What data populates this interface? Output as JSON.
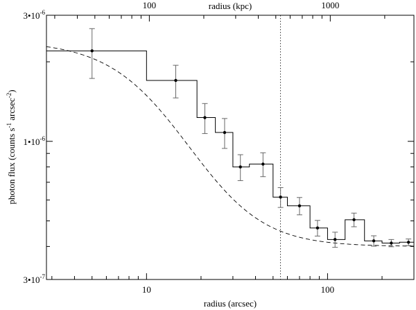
{
  "chart_data": {
    "type": "scatter",
    "title": "",
    "xlabel": "radius (arcsec)",
    "ylabel": "photon flux (counts s⁻¹ arcsec⁻²)",
    "x2label": "radius (kpc)",
    "xscale": "log",
    "yscale": "log",
    "xlim": [
      2.8,
      300
    ],
    "ylim": [
      3e-07,
      3e-06
    ],
    "x2lim": [
      27,
      2900
    ],
    "xticks": [
      {
        "value": 10,
        "label": "10"
      },
      {
        "value": 100,
        "label": "100"
      }
    ],
    "x2ticks": [
      {
        "value": 100,
        "label": "100"
      },
      {
        "value": 1000,
        "label": "1000"
      }
    ],
    "yticks": [
      {
        "value": 3e-07,
        "label": "3•10",
        "exp": "-7"
      },
      {
        "value": 1e-06,
        "label": "1•10",
        "exp": "-6"
      },
      {
        "value": 3e-06,
        "label": "3•10",
        "exp": "-6"
      }
    ],
    "vline_x": 55,
    "series": [
      {
        "kind": "points_with_errorbars",
        "x": [
          5.0,
          14.5,
          21.0,
          27.0,
          33.0,
          44.0,
          55.0,
          70.0,
          88.0,
          110.0,
          140.0,
          180.0,
          225.0,
          280.0
        ],
        "y": [
          2.2e-06,
          1.7e-06,
          1.23e-06,
          1.08e-06,
          8e-07,
          8.2e-07,
          6.15e-07,
          5.7e-07,
          4.7e-07,
          4.25e-07,
          5.05e-07,
          4.2e-07,
          4.12e-07,
          4.15e-07
        ],
        "err": [
          4.7e-07,
          2.4e-07,
          1.6e-07,
          1.4e-07,
          9e-08,
          8.5e-08,
          5.3e-08,
          4.3e-08,
          3.2e-08,
          2.8e-08,
          3e-08,
          1.9e-08,
          1.3e-08,
          1.2e-08
        ]
      },
      {
        "kind": "histogram",
        "edges": [
          2.8,
          10,
          19,
          24,
          30,
          37,
          50,
          60,
          80,
          100,
          125,
          160,
          200,
          250,
          300
        ],
        "values": [
          2.2e-06,
          1.7e-06,
          1.23e-06,
          1.08e-06,
          8e-07,
          8.2e-07,
          6.15e-07,
          5.7e-07,
          4.7e-07,
          4.25e-07,
          5.05e-07,
          4.2e-07,
          4.12e-07,
          4.15e-07
        ]
      },
      {
        "kind": "model_curve",
        "beta_model": {
          "S0": 2e-06,
          "rc": 12,
          "beta": 0.55,
          "bkg": 4e-07
        }
      }
    ]
  }
}
